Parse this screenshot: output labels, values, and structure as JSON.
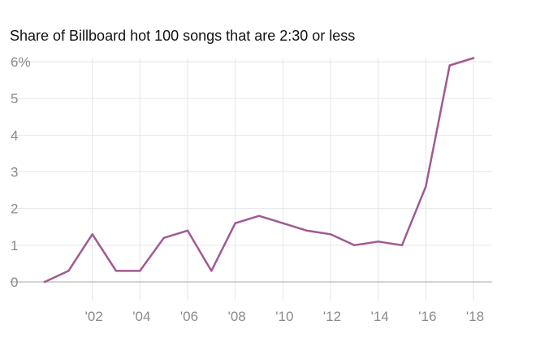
{
  "chart_data": {
    "type": "line",
    "title": "Share of Billboard hot 100 songs that are 2:30 or less",
    "xlabel": "",
    "ylabel": "",
    "x": [
      2000,
      2001,
      2002,
      2003,
      2004,
      2005,
      2006,
      2007,
      2008,
      2009,
      2010,
      2011,
      2012,
      2013,
      2014,
      2015,
      2016,
      2017,
      2018
    ],
    "y": [
      0,
      0.3,
      1.3,
      0.3,
      0.3,
      1.2,
      1.4,
      0.3,
      1.6,
      1.8,
      1.6,
      1.4,
      1.3,
      1.0,
      1.1,
      1.0,
      2.6,
      5.9,
      6.1
    ],
    "xlim": [
      2000,
      2018
    ],
    "ylim": [
      0,
      6
    ],
    "x_ticks": [
      {
        "value": 2002,
        "label": "'02"
      },
      {
        "value": 2004,
        "label": "'04"
      },
      {
        "value": 2006,
        "label": "'06"
      },
      {
        "value": 2008,
        "label": "'08"
      },
      {
        "value": 2010,
        "label": "'10"
      },
      {
        "value": 2012,
        "label": "'12"
      },
      {
        "value": 2014,
        "label": "'14"
      },
      {
        "value": 2016,
        "label": "'16"
      },
      {
        "value": 2018,
        "label": "'18"
      }
    ],
    "y_ticks": [
      {
        "value": 0,
        "label": "0"
      },
      {
        "value": 1,
        "label": "1"
      },
      {
        "value": 2,
        "label": "2"
      },
      {
        "value": 3,
        "label": "3"
      },
      {
        "value": 4,
        "label": "4"
      },
      {
        "value": 5,
        "label": "5"
      },
      {
        "value": 6,
        "label": "6%"
      }
    ],
    "grid": true,
    "line_color": "#a05a91",
    "grid_color": "#e6e6e6",
    "axis_color": "#aaaaaa"
  }
}
